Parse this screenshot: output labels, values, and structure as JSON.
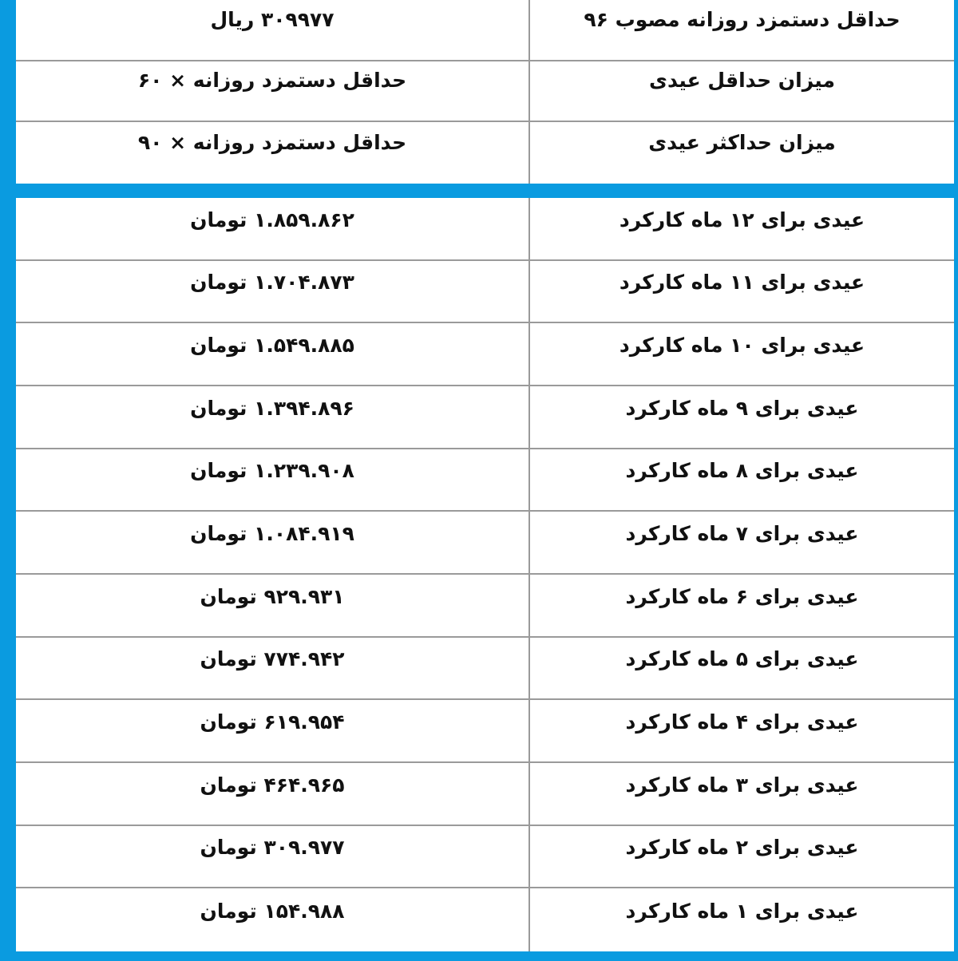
{
  "summary": [
    {
      "label": "حداقل دستمزد روزانه مصوب ۹۶",
      "value": "۳۰۹۹۷۷ ریال"
    },
    {
      "label": "میزان حداقل عیدی",
      "value": "حداقل دستمزد روزانه × ۶۰"
    },
    {
      "label": "میزان حداکثر عیدی",
      "value": "حداقل دستمزد روزانه × ۹۰"
    }
  ],
  "rows": [
    {
      "label": "عیدی برای ۱۲ ماه کارکرد",
      "value": "۱.۸۵۹.۸۶۲ تومان"
    },
    {
      "label": "عیدی برای ۱۱ ماه کارکرد",
      "value": "۱.۷۰۴.۸۷۳ تومان"
    },
    {
      "label": "عیدی برای ۱۰ ماه کارکرد",
      "value": "۱.۵۴۹.۸۸۵ تومان"
    },
    {
      "label": "عیدی برای ۹ ماه کارکرد",
      "value": "۱.۳۹۴.۸۹۶ تومان"
    },
    {
      "label": "عیدی برای ۸ ماه کارکرد",
      "value": "۱.۲۳۹.۹۰۸ تومان"
    },
    {
      "label": "عیدی برای ۷ ماه کارکرد",
      "value": "۱.۰۸۴.۹۱۹ تومان"
    },
    {
      "label": "عیدی برای ۶ ماه کارکرد",
      "value": "۹۲۹.۹۳۱  تومان"
    },
    {
      "label": "عیدی برای ۵ ماه کارکرد",
      "value": "۷۷۴.۹۴۲  تومان"
    },
    {
      "label": "عیدی برای ۴ ماه کارکرد",
      "value": "۶۱۹.۹۵۴  تومان"
    },
    {
      "label": "عیدی برای ۳ ماه کارکرد",
      "value": "۴۶۴.۹۶۵  تومان"
    },
    {
      "label": "عیدی برای ۲ ماه کارکرد",
      "value": "۳۰۹.۹۷۷  تومان"
    },
    {
      "label": "عیدی برای ۱ ماه کارکرد",
      "value": "۱۵۴.۹۸۸  تومان"
    }
  ],
  "colors": {
    "frame": "#0a9be0",
    "grid": "#9a9a9a"
  }
}
